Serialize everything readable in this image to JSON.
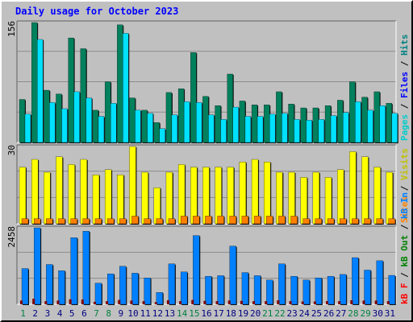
{
  "title": "Daily usage for October 2023",
  "colors": {
    "pages": "#00cccc",
    "files": "#0000ff",
    "hits": "#008080",
    "visits": "#ff8000",
    "sites": "#ff8000",
    "kbin": "#008000",
    "kbout": "#0080ff",
    "kbf": "#ff0000",
    "hits_bar": "#00805c",
    "files_bar": "#00e0ff",
    "pages_bar": "#00c0ff",
    "visits_bar": "#ffff00",
    "sites_bar": "#ff8000",
    "kb_bar": "#0080ff",
    "kbf_bar": "#800000",
    "weekend": "#008040",
    "weekday": "#000080"
  },
  "chart_data": [
    {
      "type": "bar",
      "panel": "hits-files-pages",
      "max_label": "156",
      "categories": [
        "1",
        "2",
        "3",
        "4",
        "5",
        "6",
        "7",
        "8",
        "9",
        "10",
        "11",
        "12",
        "13",
        "14",
        "15",
        "16",
        "17",
        "18",
        "19",
        "20",
        "21",
        "22",
        "23",
        "24",
        "25",
        "26",
        "27",
        "28",
        "29",
        "30",
        "31"
      ],
      "legend": [
        "Pages",
        "Files",
        "Hits"
      ],
      "series": [
        {
          "name": "Hits",
          "values": [
            56,
            156,
            68,
            63,
            136,
            122,
            42,
            79,
            153,
            58,
            42,
            26,
            65,
            70,
            117,
            60,
            48,
            89,
            54,
            49,
            49,
            66,
            50,
            45,
            45,
            48,
            55,
            79,
            59,
            66,
            51
          ]
        },
        {
          "name": "Files",
          "values": [
            37,
            134,
            52,
            44,
            66,
            58,
            34,
            51,
            142,
            42,
            38,
            18,
            36,
            53,
            52,
            36,
            30,
            46,
            34,
            34,
            37,
            38,
            30,
            29,
            30,
            35,
            39,
            53,
            42,
            48,
            38
          ]
        },
        {
          "name": "Pages",
          "values": [
            30,
            40,
            36,
            34,
            40,
            38,
            30,
            34,
            42,
            32,
            30,
            16,
            30,
            34,
            34,
            30,
            26,
            34,
            30,
            30,
            30,
            32,
            26,
            26,
            26,
            30,
            32,
            34,
            32,
            32,
            30
          ]
        }
      ]
    },
    {
      "type": "bar",
      "panel": "visits-sites",
      "max_label": "30",
      "categories": [
        "1",
        "2",
        "3",
        "4",
        "5",
        "6",
        "7",
        "8",
        "9",
        "10",
        "11",
        "12",
        "13",
        "14",
        "15",
        "16",
        "17",
        "18",
        "19",
        "20",
        "21",
        "22",
        "23",
        "24",
        "25",
        "26",
        "27",
        "28",
        "29",
        "30",
        "31"
      ],
      "legend": [
        "Sites",
        "Visits"
      ],
      "series": [
        {
          "name": "Visits",
          "values": [
            22,
            25,
            20,
            26,
            23,
            25,
            19,
            21,
            19,
            30,
            20,
            14,
            20,
            23,
            22,
            22,
            22,
            22,
            24,
            25,
            24,
            20,
            20,
            18,
            20,
            18,
            21,
            28,
            26,
            22,
            20
          ]
        },
        {
          "name": "Sites",
          "values": [
            2,
            2,
            2,
            2,
            2,
            2,
            2,
            2,
            2,
            3,
            2,
            2,
            2,
            3,
            3,
            3,
            3,
            3,
            3,
            3,
            3,
            3,
            3,
            2,
            2,
            2,
            2,
            2,
            2,
            2,
            2
          ]
        }
      ]
    },
    {
      "type": "bar",
      "panel": "kbytes",
      "max_label": "2458",
      "categories": [
        "1",
        "2",
        "3",
        "4",
        "5",
        "6",
        "7",
        "8",
        "9",
        "10",
        "11",
        "12",
        "13",
        "14",
        "15",
        "16",
        "17",
        "18",
        "19",
        "20",
        "21",
        "22",
        "23",
        "24",
        "25",
        "26",
        "27",
        "28",
        "29",
        "30",
        "31"
      ],
      "legend": [
        "kB F",
        "kB Out",
        "kB In"
      ],
      "series": [
        {
          "name": "kB In",
          "values": [
            1150,
            2458,
            1280,
            1080,
            2140,
            2350,
            680,
            980,
            1220,
            1000,
            850,
            380,
            1300,
            1040,
            2210,
            900,
            920,
            1870,
            1020,
            920,
            780,
            1300,
            900,
            780,
            850,
            900,
            960,
            1500,
            1100,
            1400,
            930
          ]
        },
        {
          "name": "kB F",
          "values": [
            120,
            180,
            100,
            120,
            160,
            150,
            80,
            100,
            140,
            120,
            100,
            70,
            130,
            100,
            140,
            110,
            100,
            120,
            110,
            100,
            100,
            130,
            100,
            90,
            90,
            100,
            100,
            130,
            120,
            120,
            100
          ]
        }
      ]
    }
  ],
  "weekend_days": [
    "1",
    "7",
    "8",
    "14",
    "15",
    "21",
    "22",
    "28",
    "29"
  ]
}
